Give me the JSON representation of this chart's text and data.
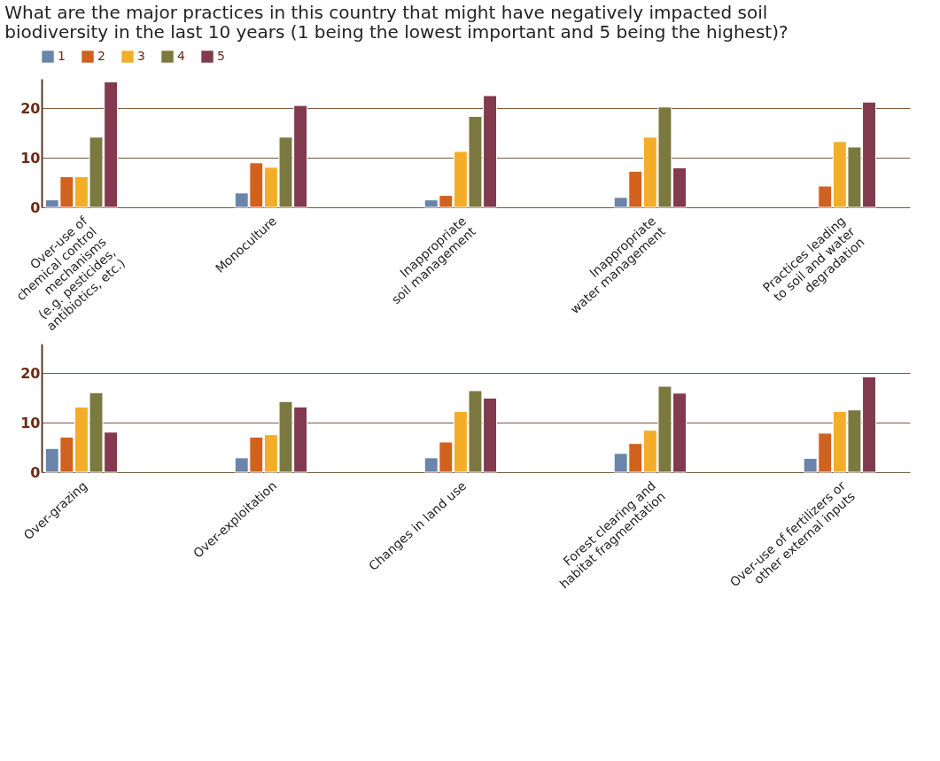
{
  "chart_data": [
    {
      "type": "bar",
      "title": "What are the major practices in this country that might have negatively impacted soil\nbiodiversity in the last 10 years (1 being the lowest important and 5 being the highest)?",
      "categories": [
        "Over-use of\nchemical control\nmechanisms\n(e.g. pesticides,\nantibiotics, etc.)",
        "Monoculture",
        "Inappropriate\nsoil management",
        "Inappropriate\nwater management",
        "Practices leading\nto soil and water\ndegradation"
      ],
      "series": [
        {
          "name": "1",
          "color": "#6a84aa",
          "values": [
            1.5,
            2.9,
            1.5,
            2.0,
            null
          ]
        },
        {
          "name": "2",
          "color": "#d0611f",
          "values": [
            6.2,
            9.0,
            2.4,
            7.3,
            4.3
          ]
        },
        {
          "name": "3",
          "color": "#f4ad28",
          "values": [
            6.2,
            8.1,
            11.3,
            14.2,
            13.3
          ]
        },
        {
          "name": "4",
          "color": "#7b7840",
          "values": [
            14.2,
            14.2,
            18.4,
            20.3,
            12.2
          ]
        },
        {
          "name": "5",
          "color": "#813a4e",
          "values": [
            25.4,
            20.6,
            22.6,
            8.0,
            21.3
          ]
        }
      ],
      "ylim": [
        0,
        26
      ],
      "yticks": [
        0,
        10,
        20
      ],
      "grid": "y",
      "legend": "top"
    },
    {
      "type": "bar",
      "categories": [
        "Over-grazing",
        "Over-exploitation",
        "Changes in land use",
        "Forest clearing and\nhabitat fragmentation",
        "Over-use of fertilizers or\nother external inputs"
      ],
      "series": [
        {
          "name": "1",
          "color": "#6a84aa",
          "values": [
            4.8,
            2.9,
            2.9,
            3.8,
            2.8
          ]
        },
        {
          "name": "2",
          "color": "#d0611f",
          "values": [
            7.1,
            7.1,
            6.1,
            5.8,
            7.9
          ]
        },
        {
          "name": "3",
          "color": "#f4ad28",
          "values": [
            13.2,
            7.6,
            12.3,
            8.5,
            12.3
          ]
        },
        {
          "name": "4",
          "color": "#7b7840",
          "values": [
            16.1,
            14.3,
            16.5,
            17.4,
            12.6
          ]
        },
        {
          "name": "5",
          "color": "#813a4e",
          "values": [
            8.1,
            13.2,
            15.0,
            16.0,
            19.3
          ]
        }
      ],
      "ylim": [
        0,
        26
      ],
      "yticks": [
        0,
        10,
        20
      ],
      "grid": "y"
    }
  ]
}
